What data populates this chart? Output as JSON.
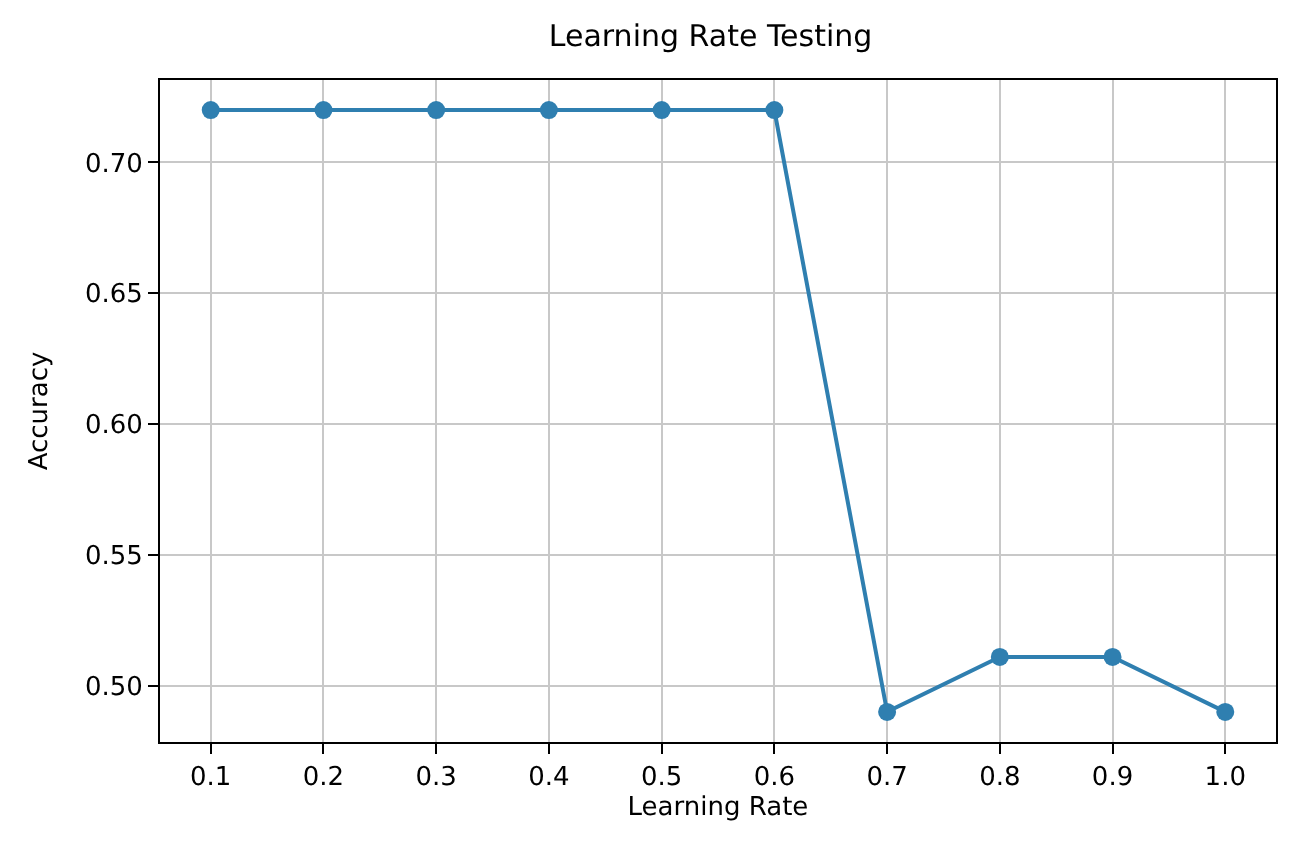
{
  "chart_data": {
    "type": "line",
    "title": "Learning Rate Testing",
    "xlabel": "Learning Rate",
    "ylabel": "Accuracy",
    "x": [
      0.1,
      0.2,
      0.3,
      0.4,
      0.5,
      0.6,
      0.7,
      0.8,
      0.9,
      1.0
    ],
    "series": [
      {
        "color": "#2f7fb0",
        "values": [
          0.72,
          0.72,
          0.72,
          0.72,
          0.72,
          0.72,
          0.49,
          0.511,
          0.511,
          0.49
        ]
      }
    ],
    "xlim": [
      0.055,
      1.045
    ],
    "xticks": [
      0.1,
      0.2,
      0.3,
      0.4,
      0.5,
      0.6,
      0.7,
      0.8,
      0.9,
      {
        "value": 1.0,
        "label": "1.0"
      }
    ],
    "ylim": [
      0.4785,
      0.7315
    ],
    "yticks": [
      {
        "value": 0.5,
        "label": "0.50"
      },
      0.55,
      {
        "value": 0.6,
        "label": "0.60"
      },
      0.65,
      {
        "value": 0.7,
        "label": "0.70"
      }
    ],
    "grid": true,
    "marker": "circle",
    "line_style": "solid",
    "legend": false
  }
}
